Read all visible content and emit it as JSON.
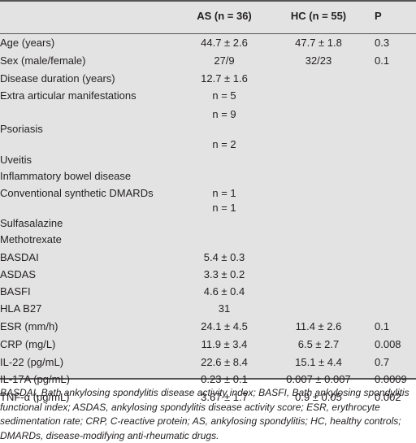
{
  "header": {
    "col_label": "",
    "as": "AS (n = 36)",
    "hc": "HC (n = 55)",
    "p": "P"
  },
  "rows": [
    {
      "label": "Age (years)",
      "as": "44.7 ± 2.6",
      "hc": "47.7 ± 1.8",
      "p": "0.3"
    },
    {
      "label": "Sex (male/female)",
      "as": "27/9",
      "hc": "32/23",
      "p": "0.1"
    },
    {
      "label": "Disease duration (years)",
      "as": "12.7 ± 1.6",
      "hc": "",
      "p": ""
    },
    {
      "label": "Extra articular manifestations",
      "as": "n = 5",
      "hc": "",
      "p": ""
    },
    {
      "label": "",
      "as": "n = 9",
      "hc": "",
      "p": ""
    },
    {
      "label": "Psoriasis",
      "as": "",
      "hc": "",
      "p": ""
    },
    {
      "label": "",
      "as": "n = 2",
      "hc": "",
      "p": ""
    },
    {
      "label": "Uveitis",
      "as": "",
      "hc": "",
      "p": ""
    },
    {
      "label": "Inflammatory bowel disease",
      "as": "",
      "hc": "",
      "p": ""
    },
    {
      "label": "Conventional synthetic DMARDs",
      "as": "n = 1",
      "hc": "",
      "p": ""
    },
    {
      "label": "",
      "as": "n = 1",
      "hc": "",
      "p": ""
    },
    {
      "label": "Sulfasalazine",
      "as": "",
      "hc": "",
      "p": ""
    },
    {
      "label": "Methotrexate",
      "as": "",
      "hc": "",
      "p": ""
    },
    {
      "label": "BASDAI",
      "as": "5.4 ± 0.3",
      "hc": "",
      "p": ""
    },
    {
      "label": "ASDAS",
      "as": "3.3 ± 0.2",
      "hc": "",
      "p": ""
    },
    {
      "label": "BASFI",
      "as": "4.6 ± 0.4",
      "hc": "",
      "p": ""
    },
    {
      "label": "HLA B27",
      "as": "31",
      "hc": "",
      "p": ""
    },
    {
      "label": "ESR (mm/h)",
      "as": "24.1 ± 4.5",
      "hc": "11.4 ± 2.6",
      "p": "0.1"
    },
    {
      "label": "CRP (mg/L)",
      "as": "11.9 ± 3.4",
      "hc": "6.5 ± 2.7",
      "p": "0.008"
    },
    {
      "label": "IL-22 (pg/mL)",
      "as": "22.6 ± 8.4",
      "hc": "15.1 ± 4.4",
      "p": "0.7"
    },
    {
      "label": "IL-17A (pg/mL)",
      "as": "0.23 ± 0.1",
      "hc": "0.007 ± 0.007",
      "p": "0.0009"
    },
    {
      "label": "TNF-α (pg/mL)",
      "as": "3.67 ± 1.7",
      "hc": "0.9 ± 0.05",
      "p": "0.002"
    }
  ],
  "footnote": "BASDAI, Bath ankylosing spondylitis disease activity index; BASFI, Bath ankylosing spondylitis functional index; ASDAS, ankylosing spondylitis disease activity score; ESR, erythrocyte sedimentation rate; CRP, C-reactive protein; AS, ankylosing spondylitis; HC, healthy controls; DMARDs, disease-modifying anti-rheumatic drugs."
}
